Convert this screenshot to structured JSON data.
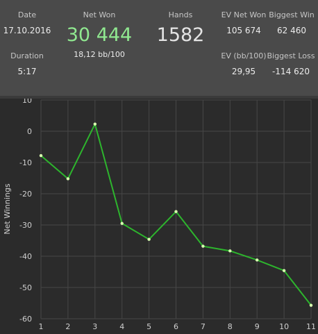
{
  "stats": {
    "date_label": "Date",
    "date_value": "17.10.2016",
    "duration_label": "Duration",
    "duration_value": "5:17",
    "net_won_label": "Net Won",
    "net_won_value": "30 444",
    "net_won_sub": "18,12 bb/100",
    "hands_label": "Hands",
    "hands_value": "1582",
    "ev_net_won_label": "EV Net Won",
    "ev_net_won_value": "105 674",
    "ev_bb_label": "EV (bb/100)",
    "ev_bb_value": "29,95",
    "biggest_win_label": "Biggest Win",
    "biggest_win_value": "62 460",
    "biggest_loss_label": "Biggest Loss",
    "biggest_loss_value": "-114 620"
  },
  "colors": {
    "net_won_value": "#90e890",
    "line": "#2db52d",
    "point": "#d8ffb0",
    "grid": "#474747"
  },
  "chart_data": {
    "type": "line",
    "x": [
      1,
      2,
      3,
      4,
      5,
      6,
      7,
      8,
      9,
      10,
      11
    ],
    "series": [
      {
        "values": [
          -7.8,
          -15.2,
          2.3,
          -29.5,
          -34.6,
          -25.7,
          -36.8,
          -38.3,
          -41.2,
          -44.6,
          -55.7
        ]
      }
    ],
    "xlabel": "",
    "ylabel": "Net Winnings",
    "xlim": [
      1,
      11
    ],
    "ylim": [
      -60,
      10
    ],
    "yticks": [
      10,
      0,
      -10,
      -20,
      -30,
      -40,
      -50,
      -60
    ],
    "xticks": [
      1,
      2,
      3,
      4,
      5,
      6,
      7,
      8,
      9,
      10,
      11
    ],
    "grid": true
  }
}
